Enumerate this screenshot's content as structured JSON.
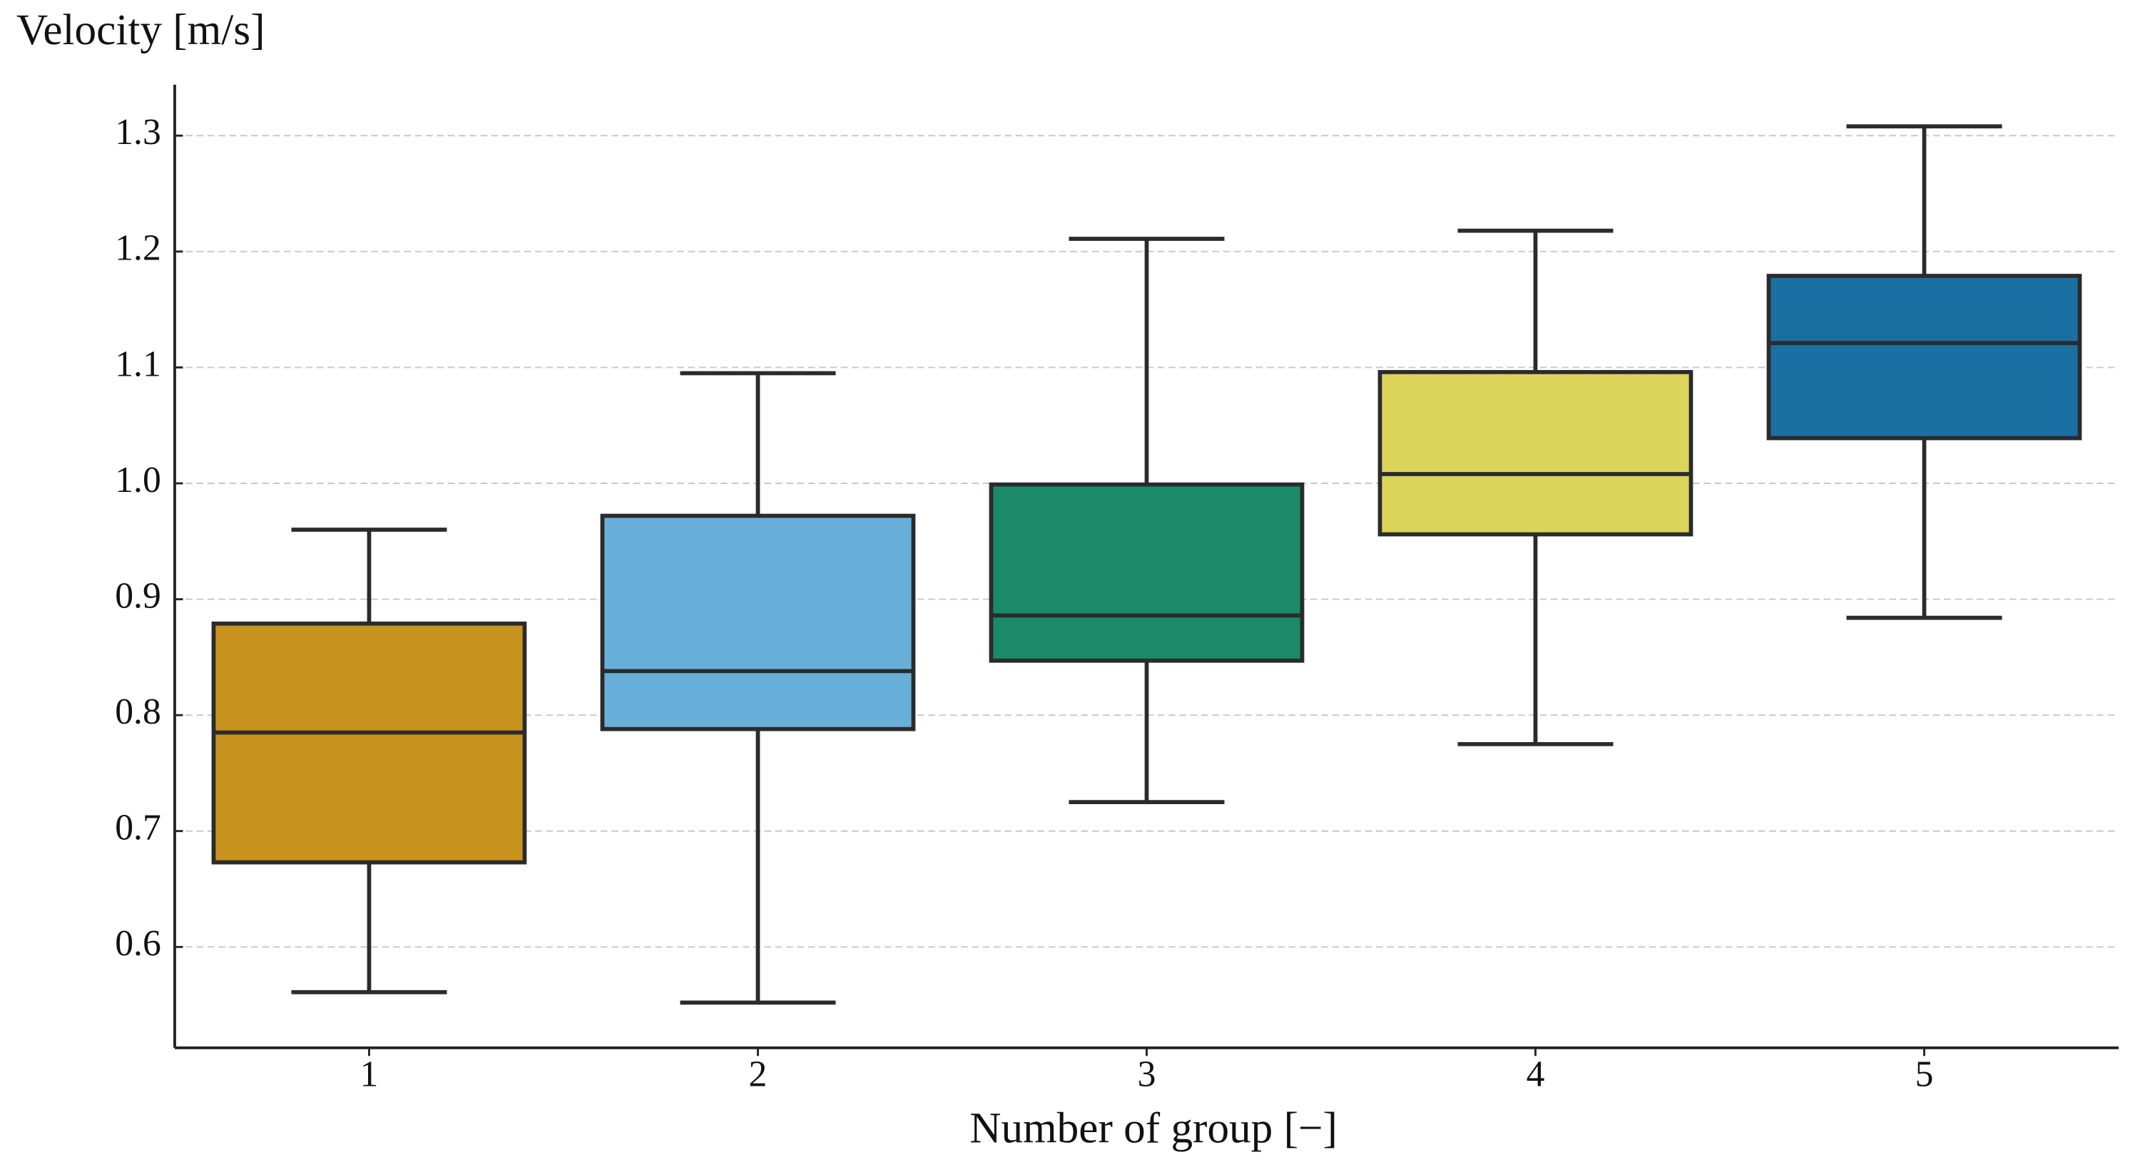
{
  "chart_data": {
    "type": "box",
    "y_label": "Velocity [m/s]",
    "x_label": "Number of group [−]",
    "categories": [
      "1",
      "2",
      "3",
      "4",
      "5"
    ],
    "colors": [
      "#c8921e",
      "#67afd8",
      "#1a8a68",
      "#dcd35b",
      "#1a6fa3"
    ],
    "boxes": [
      {
        "whislo": 0.561,
        "q1": 0.673,
        "med": 0.785,
        "q3": 0.879,
        "whishi": 0.96
      },
      {
        "whislo": 0.552,
        "q1": 0.788,
        "med": 0.838,
        "q3": 0.972,
        "whishi": 1.095
      },
      {
        "whislo": 0.725,
        "q1": 0.847,
        "med": 0.886,
        "q3": 0.999,
        "whishi": 1.211
      },
      {
        "whislo": 0.775,
        "q1": 0.956,
        "med": 1.008,
        "q3": 1.096,
        "whishi": 1.218
      },
      {
        "whislo": 0.884,
        "q1": 1.039,
        "med": 1.121,
        "q3": 1.179,
        "whishi": 1.308
      }
    ],
    "ylim": [
      0.513,
      1.344
    ],
    "yticks": [
      0.6,
      0.7,
      0.8,
      0.9,
      {
        "value": 1,
        "label": "1.0"
      },
      1.1,
      1.2,
      1.3
    ],
    "grid": true
  }
}
